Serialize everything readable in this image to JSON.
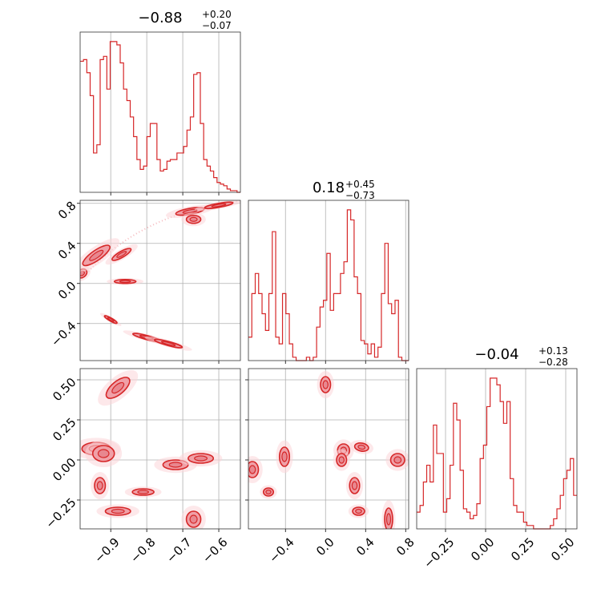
{
  "chart_data": {
    "type": "corner",
    "color": "#d62728",
    "parameters": [
      {
        "title_main": "−0.88",
        "title_sup": "+0.20",
        "title_sub": "−0.07",
        "range": [
          -0.985,
          -0.54
        ],
        "ticks": [
          -0.9,
          -0.8,
          -0.7,
          -0.6
        ],
        "tick_labels": [
          "−0.9",
          "−0.8",
          "−0.7",
          "−0.6"
        ],
        "hist_values": [
          0.8,
          0.81,
          0.73,
          0.59,
          0.24,
          0.29,
          0.81,
          0.83,
          0.63,
          0.92,
          0.92,
          0.9,
          0.79,
          0.63,
          0.56,
          0.46,
          0.34,
          0.2,
          0.14,
          0.16,
          0.34,
          0.42,
          0.42,
          0.2,
          0.13,
          0.14,
          0.19,
          0.2,
          0.2,
          0.24,
          0.24,
          0.28,
          0.38,
          0.46,
          0.72,
          0.73,
          0.42,
          0.2,
          0.16,
          0.13,
          0.09,
          0.06,
          0.05,
          0.04,
          0.02,
          0.01,
          0.01,
          0.0
        ]
      },
      {
        "title_main": "0.18",
        "title_sup": "+0.45",
        "title_sub": "−0.73",
        "range": [
          -0.77,
          0.83
        ],
        "ticks": [
          -0.4,
          0.0,
          0.4,
          0.8
        ],
        "tick_labels": [
          "−0.4",
          "0.0",
          "0.4",
          "0.8"
        ],
        "hist_values": [
          0.14,
          0.4,
          0.52,
          0.4,
          0.28,
          0.18,
          0.4,
          0.77,
          0.14,
          0.1,
          0.4,
          0.28,
          0.1,
          0.02,
          0.0,
          0.0,
          0.0,
          0.02,
          0.0,
          0.02,
          0.2,
          0.32,
          0.36,
          0.64,
          0.3,
          0.4,
          0.4,
          0.52,
          0.59,
          0.9,
          0.84,
          0.5,
          0.4,
          0.12,
          0.1,
          0.04,
          0.1,
          0.02,
          0.08,
          0.4,
          0.7,
          0.34,
          0.28,
          0.36,
          0.02,
          0.0,
          0.0
        ]
      },
      {
        "title_main": "−0.04",
        "title_sup": "+0.13",
        "title_sub": "−0.28",
        "range": [
          -0.43,
          0.57
        ],
        "ticks": [
          -0.25,
          0.0,
          0.25,
          0.5
        ],
        "tick_labels": [
          "−0.25",
          "0.00",
          "0.25",
          "0.50"
        ],
        "hist_values": [
          0.1,
          0.14,
          0.28,
          0.38,
          0.28,
          0.62,
          0.45,
          0.45,
          0.1,
          0.18,
          0.38,
          0.75,
          0.65,
          0.35,
          0.12,
          0.1,
          0.06,
          0.08,
          0.15,
          0.42,
          0.5,
          0.73,
          0.9,
          0.9,
          0.86,
          0.76,
          0.63,
          0.76,
          0.3,
          0.14,
          0.1,
          0.1,
          0.04,
          0.02,
          0.02,
          0.0,
          0.0,
          0.0,
          0.0,
          0.0,
          0.02,
          0.06,
          0.12,
          0.2,
          0.3,
          0.35,
          0.42,
          0.2
        ]
      }
    ],
    "grid": true,
    "blobs_2d": [
      {
        "pair": "x0-x1",
        "cx": -0.98,
        "cy": 0.1,
        "rx": 0.015,
        "ry": 0.04,
        "angle": 35
      },
      {
        "pair": "x0-x1",
        "cx": -0.94,
        "cy": 0.28,
        "rx": 0.045,
        "ry": 0.05,
        "angle": 35
      },
      {
        "pair": "x0-x1",
        "cx": -0.87,
        "cy": 0.29,
        "rx": 0.03,
        "ry": 0.03,
        "angle": 30
      },
      {
        "pair": "x0-x1",
        "cx": -0.86,
        "cy": 0.02,
        "rx": 0.03,
        "ry": 0.02,
        "angle": 0
      },
      {
        "pair": "x0-x1",
        "cx": -0.68,
        "cy": 0.72,
        "rx": 0.04,
        "ry": 0.03,
        "angle": 10
      },
      {
        "pair": "x0-x1",
        "cx": -0.67,
        "cy": 0.64,
        "rx": 0.02,
        "ry": 0.04,
        "angle": 0
      },
      {
        "pair": "x0-x1",
        "cx": -0.6,
        "cy": 0.78,
        "rx": 0.04,
        "ry": 0.02,
        "angle": 10
      },
      {
        "pair": "x0-x1",
        "cx": -0.8,
        "cy": -0.54,
        "rx": 0.04,
        "ry": 0.02,
        "angle": -15
      },
      {
        "pair": "x0-x1",
        "cx": -0.74,
        "cy": -0.6,
        "rx": 0.04,
        "ry": 0.02,
        "angle": -15
      },
      {
        "pair": "x0-x1",
        "cx": -0.9,
        "cy": -0.36,
        "rx": 0.02,
        "ry": 0.015,
        "angle": -30
      },
      {
        "pair": "x0-x2",
        "cx": -0.88,
        "cy": 0.45,
        "rx": 0.04,
        "ry": 0.04,
        "angle": 40
      },
      {
        "pair": "x0-x2",
        "cx": -0.94,
        "cy": 0.07,
        "rx": 0.04,
        "ry": 0.04,
        "angle": 0
      },
      {
        "pair": "x0-x2",
        "cx": -0.92,
        "cy": 0.04,
        "rx": 0.03,
        "ry": 0.05,
        "angle": 0
      },
      {
        "pair": "x0-x2",
        "cx": -0.93,
        "cy": -0.16,
        "rx": 0.015,
        "ry": 0.05,
        "angle": 0
      },
      {
        "pair": "x0-x2",
        "cx": -0.88,
        "cy": -0.32,
        "rx": 0.035,
        "ry": 0.025,
        "angle": 0
      },
      {
        "pair": "x0-x2",
        "cx": -0.81,
        "cy": -0.2,
        "rx": 0.03,
        "ry": 0.02,
        "angle": 0
      },
      {
        "pair": "x0-x2",
        "cx": -0.72,
        "cy": -0.03,
        "rx": 0.035,
        "ry": 0.03,
        "angle": 0
      },
      {
        "pair": "x0-x2",
        "cx": -0.65,
        "cy": 0.01,
        "rx": 0.035,
        "ry": 0.03,
        "angle": 0
      },
      {
        "pair": "x0-x2",
        "cx": -0.67,
        "cy": -0.37,
        "rx": 0.02,
        "ry": 0.05,
        "angle": 0
      },
      {
        "pair": "x1-x2",
        "cx": -0.73,
        "cy": -0.06,
        "rx": 0.06,
        "ry": 0.05,
        "angle": 0
      },
      {
        "pair": "x1-x2",
        "cx": -0.57,
        "cy": -0.2,
        "rx": 0.05,
        "ry": 0.025,
        "angle": 0
      },
      {
        "pair": "x1-x2",
        "cx": -0.41,
        "cy": 0.02,
        "rx": 0.05,
        "ry": 0.06,
        "angle": 0
      },
      {
        "pair": "x1-x2",
        "cx": 0.0,
        "cy": 0.47,
        "rx": 0.05,
        "ry": 0.05,
        "angle": 0
      },
      {
        "pair": "x1-x2",
        "cx": 0.18,
        "cy": 0.06,
        "rx": 0.06,
        "ry": 0.04,
        "angle": 0
      },
      {
        "pair": "x1-x2",
        "cx": 0.36,
        "cy": 0.08,
        "rx": 0.07,
        "ry": 0.025,
        "angle": -10
      },
      {
        "pair": "x1-x2",
        "cx": 0.16,
        "cy": 0.0,
        "rx": 0.05,
        "ry": 0.04,
        "angle": 0
      },
      {
        "pair": "x1-x2",
        "cx": 0.29,
        "cy": -0.16,
        "rx": 0.05,
        "ry": 0.05,
        "angle": 0
      },
      {
        "pair": "x1-x2",
        "cx": 0.33,
        "cy": -0.32,
        "rx": 0.06,
        "ry": 0.025,
        "angle": 0
      },
      {
        "pair": "x1-x2",
        "cx": 0.72,
        "cy": 0.0,
        "rx": 0.07,
        "ry": 0.04,
        "angle": 0
      },
      {
        "pair": "x1-x2",
        "cx": 0.63,
        "cy": -0.37,
        "rx": 0.04,
        "ry": 0.07,
        "angle": 0
      }
    ]
  }
}
